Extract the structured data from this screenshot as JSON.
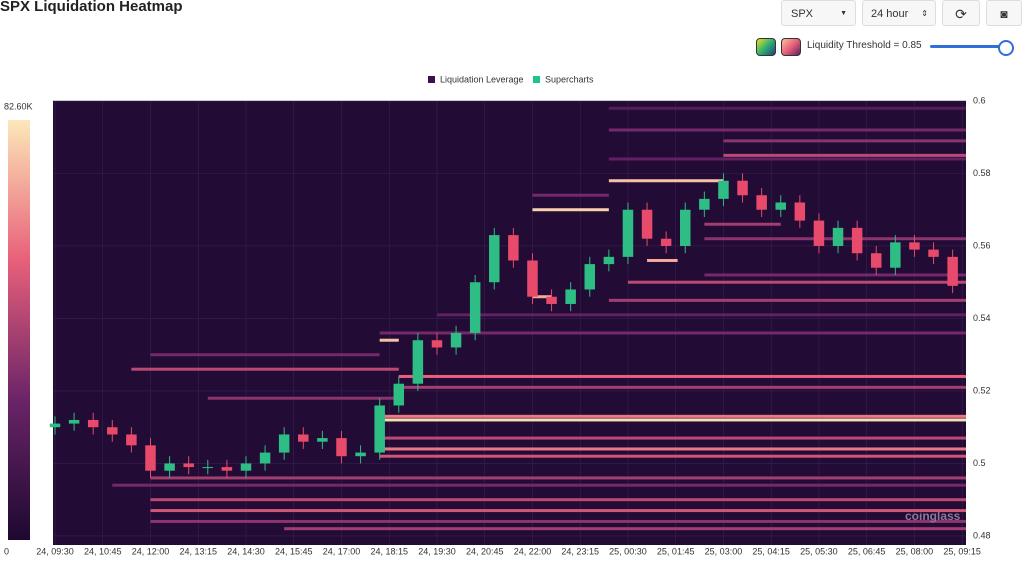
{
  "header": {
    "title": "SPX Liquidation Heatmap",
    "symbol": "SPX",
    "range": "24 hour",
    "threshold": "Liquidity Threshold = 0.85"
  },
  "chart_data": {
    "type": "candlestick",
    "legend": [
      "Liquidation Leverage",
      "Supercharts"
    ],
    "legend_colors": [
      "#3b1053",
      "#1fc48a"
    ],
    "watermark": "coinglass",
    "up_color": "#2ebd85",
    "down_color": "#e84a6b",
    "grid": true,
    "xlim": [
      0,
      23.85
    ],
    "xticks": [
      {
        "value": 0,
        "label": "24, 09:30"
      },
      {
        "value": 1.25,
        "label": "24, 10:45"
      },
      {
        "value": 2.5,
        "label": "24, 12:00"
      },
      {
        "value": 3.75,
        "label": "24, 13:15"
      },
      {
        "value": 5,
        "label": "24, 14:30"
      },
      {
        "value": 6.25,
        "label": "24, 15:45"
      },
      {
        "value": 7.5,
        "label": "24, 17:00"
      },
      {
        "value": 8.75,
        "label": "24, 18:15"
      },
      {
        "value": 10,
        "label": "24, 19:30"
      },
      {
        "value": 11.25,
        "label": "24, 20:45"
      },
      {
        "value": 12.5,
        "label": "24, 22:00"
      },
      {
        "value": 13.75,
        "label": "24, 23:15"
      },
      {
        "value": 15,
        "label": "25, 00:30"
      },
      {
        "value": 16.25,
        "label": "25, 01:45"
      },
      {
        "value": 17.5,
        "label": "25, 03:00"
      },
      {
        "value": 18.75,
        "label": "25, 04:15"
      },
      {
        "value": 20,
        "label": "25, 05:30"
      },
      {
        "value": 21.25,
        "label": "25, 06:45"
      },
      {
        "value": 22.5,
        "label": "25, 08:00"
      },
      {
        "value": 23.75,
        "label": "25, 09:15"
      }
    ],
    "ylim": [
      0.4775,
      0.6
    ],
    "yticks": [
      0.48,
      0.5,
      0.52,
      0.54,
      0.56,
      0.58,
      0.6
    ],
    "colorscale": [
      "#1e0830",
      "#6a2468",
      "#e8607a",
      "#fce8b8"
    ],
    "clim": [
      0,
      82600
    ],
    "cticks": [
      0,
      {
        "value": 82600,
        "label": "82.60K"
      }
    ],
    "x": [
      0,
      0.5,
      1,
      1.5,
      2,
      2.5,
      3,
      3.5,
      4,
      4.5,
      5,
      5.5,
      6,
      6.5,
      7,
      7.5,
      8,
      8.5,
      9,
      9.5,
      10,
      10.5,
      11,
      11.5,
      12,
      12.5,
      13,
      13.5,
      14,
      14.5,
      15,
      15.5,
      16,
      16.5,
      17,
      17.5,
      18,
      18.5,
      19,
      19.5,
      20,
      20.5,
      21,
      21.5,
      22,
      22.5,
      23,
      23.5
    ],
    "open": [
      0.51,
      0.511,
      0.512,
      0.51,
      0.508,
      0.505,
      0.498,
      0.5,
      0.499,
      0.499,
      0.498,
      0.5,
      0.503,
      0.508,
      0.506,
      0.507,
      0.502,
      0.503,
      0.516,
      0.522,
      0.534,
      0.532,
      0.536,
      0.55,
      0.563,
      0.556,
      0.546,
      0.544,
      0.548,
      0.555,
      0.557,
      0.57,
      0.562,
      0.56,
      0.57,
      0.573,
      0.578,
      0.574,
      0.57,
      0.572,
      0.567,
      0.56,
      0.565,
      0.558,
      0.554,
      0.561,
      0.559,
      0.557
    ],
    "high": [
      0.513,
      0.514,
      0.514,
      0.512,
      0.51,
      0.507,
      0.502,
      0.502,
      0.501,
      0.501,
      0.502,
      0.505,
      0.51,
      0.51,
      0.509,
      0.509,
      0.505,
      0.518,
      0.524,
      0.536,
      0.536,
      0.538,
      0.552,
      0.565,
      0.565,
      0.558,
      0.548,
      0.55,
      0.557,
      0.559,
      0.572,
      0.572,
      0.564,
      0.572,
      0.575,
      0.58,
      0.58,
      0.576,
      0.574,
      0.574,
      0.569,
      0.567,
      0.567,
      0.56,
      0.563,
      0.563,
      0.561,
      0.559
    ],
    "low": [
      0.508,
      0.509,
      0.508,
      0.506,
      0.503,
      0.496,
      0.496,
      0.497,
      0.497,
      0.496,
      0.496,
      0.498,
      0.501,
      0.504,
      0.504,
      0.5,
      0.5,
      0.501,
      0.514,
      0.52,
      0.53,
      0.53,
      0.534,
      0.548,
      0.554,
      0.544,
      0.542,
      0.542,
      0.546,
      0.553,
      0.555,
      0.56,
      0.558,
      0.558,
      0.568,
      0.571,
      0.572,
      0.568,
      0.568,
      0.565,
      0.558,
      0.558,
      0.556,
      0.552,
      0.552,
      0.557,
      0.555,
      0.547
    ],
    "close": [
      0.511,
      0.512,
      0.51,
      0.508,
      0.505,
      0.498,
      0.5,
      0.499,
      0.499,
      0.498,
      0.5,
      0.503,
      0.508,
      0.506,
      0.507,
      0.502,
      0.503,
      0.516,
      0.522,
      0.534,
      0.532,
      0.536,
      0.55,
      0.563,
      0.556,
      0.546,
      0.544,
      0.548,
      0.555,
      0.557,
      0.57,
      0.562,
      0.56,
      0.57,
      0.573,
      0.578,
      0.574,
      0.57,
      0.572,
      0.567,
      0.56,
      0.565,
      0.558,
      0.554,
      0.561,
      0.559,
      0.557,
      0.549
    ],
    "bands": [
      {
        "price": 0.598,
        "start": 14.5,
        "end": 23.85,
        "intensity": 20000
      },
      {
        "price": 0.592,
        "start": 14.5,
        "end": 23.85,
        "intensity": 30000
      },
      {
        "price": 0.589,
        "start": 17.5,
        "end": 23.85,
        "intensity": 35000
      },
      {
        "price": 0.585,
        "start": 17.5,
        "end": 23.85,
        "intensity": 45000
      },
      {
        "price": 0.584,
        "start": 14.5,
        "end": 23.85,
        "intensity": 25000
      },
      {
        "price": 0.578,
        "start": 14.5,
        "end": 17.5,
        "intensity": 75000
      },
      {
        "price": 0.574,
        "start": 12.5,
        "end": 14.5,
        "intensity": 30000
      },
      {
        "price": 0.57,
        "start": 12.5,
        "end": 14.5,
        "intensity": 78000
      },
      {
        "price": 0.566,
        "start": 17,
        "end": 19,
        "intensity": 40000
      },
      {
        "price": 0.562,
        "start": 17,
        "end": 23.85,
        "intensity": 35000
      },
      {
        "price": 0.556,
        "start": 15.5,
        "end": 16.3,
        "intensity": 70000
      },
      {
        "price": 0.552,
        "start": 17,
        "end": 23.85,
        "intensity": 30000
      },
      {
        "price": 0.55,
        "start": 15,
        "end": 23.85,
        "intensity": 45000
      },
      {
        "price": 0.546,
        "start": 12.5,
        "end": 13,
        "intensity": 70000
      },
      {
        "price": 0.545,
        "start": 14.5,
        "end": 23.85,
        "intensity": 40000
      },
      {
        "price": 0.541,
        "start": 10,
        "end": 23.85,
        "intensity": 25000
      },
      {
        "price": 0.536,
        "start": 8.5,
        "end": 23.85,
        "intensity": 30000
      },
      {
        "price": 0.534,
        "start": 8.5,
        "end": 9,
        "intensity": 75000
      },
      {
        "price": 0.53,
        "start": 2.5,
        "end": 8.5,
        "intensity": 30000
      },
      {
        "price": 0.526,
        "start": 2,
        "end": 9,
        "intensity": 45000
      },
      {
        "price": 0.524,
        "start": 9,
        "end": 23.85,
        "intensity": 55000
      },
      {
        "price": 0.521,
        "start": 9,
        "end": 23.85,
        "intensity": 40000
      },
      {
        "price": 0.518,
        "start": 4,
        "end": 9,
        "intensity": 35000
      },
      {
        "price": 0.513,
        "start": 8.5,
        "end": 23.85,
        "intensity": 60000
      },
      {
        "price": 0.512,
        "start": 8.5,
        "end": 23.85,
        "intensity": 80000
      },
      {
        "price": 0.507,
        "start": 8.5,
        "end": 23.85,
        "intensity": 45000
      },
      {
        "price": 0.504,
        "start": 8.5,
        "end": 23.85,
        "intensity": 60000
      },
      {
        "price": 0.502,
        "start": 8.5,
        "end": 23.85,
        "intensity": 50000
      },
      {
        "price": 0.496,
        "start": 2.5,
        "end": 23.85,
        "intensity": 40000
      },
      {
        "price": 0.494,
        "start": 1.5,
        "end": 23.85,
        "intensity": 30000
      },
      {
        "price": 0.49,
        "start": 2.5,
        "end": 23.85,
        "intensity": 45000
      },
      {
        "price": 0.487,
        "start": 2.5,
        "end": 23.85,
        "intensity": 50000
      },
      {
        "price": 0.484,
        "start": 2.5,
        "end": 23.85,
        "intensity": 35000
      },
      {
        "price": 0.482,
        "start": 6,
        "end": 23.85,
        "intensity": 40000
      }
    ]
  }
}
